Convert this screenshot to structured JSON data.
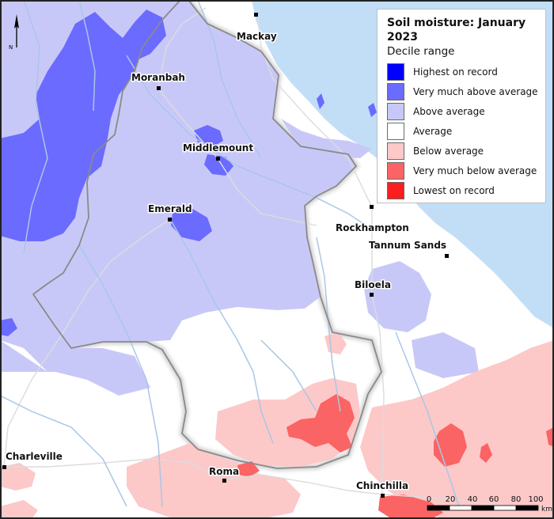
{
  "legend": {
    "title": "Soil moisture: January 2023",
    "subtitle": "Decile range",
    "items": [
      {
        "label": "Highest on record",
        "color": "#0000ff"
      },
      {
        "label": "Very much above average",
        "color": "#6b6bff"
      },
      {
        "label": "Above average",
        "color": "#c8c8f8"
      },
      {
        "label": "Average",
        "color": "#ffffff"
      },
      {
        "label": "Below average",
        "color": "#fdc8c8"
      },
      {
        "label": "Very much below average",
        "color": "#fb6464"
      },
      {
        "label": "Lowest on record",
        "color": "#fb1e1e"
      }
    ]
  },
  "places": {
    "mackay": "Mackay",
    "moranbah": "Moranbah",
    "middlemount": "Middlemount",
    "emerald": "Emerald",
    "rockhampton": "Rockhampton",
    "tannum_sands": "Tannum Sands",
    "biloela": "Biloela",
    "charleville": "Charleville",
    "roma": "Roma",
    "chinchilla": "Chinchilla"
  },
  "north_arrow": {
    "label": "N"
  },
  "scale_bar": {
    "ticks": [
      "0",
      "20",
      "40",
      "60",
      "80",
      "100"
    ],
    "unit": "km"
  },
  "colors": {
    "ocean": "#c2def7",
    "river": "#a9c7e6",
    "road": "#dcdcdc",
    "boundary": "#888888"
  }
}
